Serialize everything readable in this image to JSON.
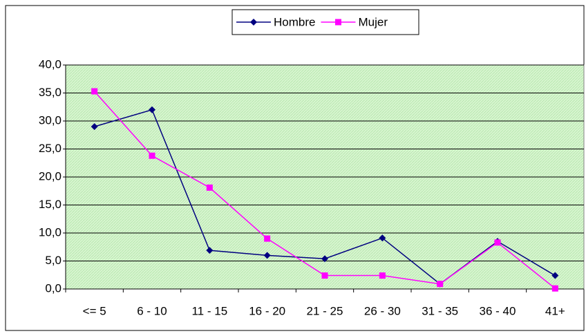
{
  "chart_data": {
    "type": "line",
    "categories": [
      "<= 5",
      "6 - 10",
      "11 - 15",
      "16 - 20",
      "21 - 25",
      "26 - 30",
      "31 - 35",
      "36 - 40",
      "41+"
    ],
    "series": [
      {
        "name": "Hombre",
        "color": "#000080",
        "marker": "diamond",
        "values": [
          29.0,
          32.0,
          6.9,
          6.0,
          5.4,
          9.1,
          0.9,
          8.5,
          2.4
        ]
      },
      {
        "name": "Mujer",
        "color": "#ff00ff",
        "marker": "square",
        "values": [
          35.3,
          23.8,
          18.1,
          9.0,
          2.4,
          2.4,
          0.9,
          8.3,
          0.1
        ]
      }
    ],
    "ylim": [
      0,
      40
    ],
    "yticks": [
      {
        "value": 0,
        "label": "0,0"
      },
      {
        "value": 5,
        "label": "5,0"
      },
      {
        "value": 10,
        "label": "10,0"
      },
      {
        "value": 15,
        "label": "15,0"
      },
      {
        "value": 20,
        "label": "20,0"
      },
      {
        "value": 25,
        "label": "25,0"
      },
      {
        "value": 30,
        "label": "30,0"
      },
      {
        "value": 35,
        "label": "35,0"
      },
      {
        "value": 40,
        "label": "40,0"
      }
    ],
    "grid": true,
    "legend": "top"
  }
}
